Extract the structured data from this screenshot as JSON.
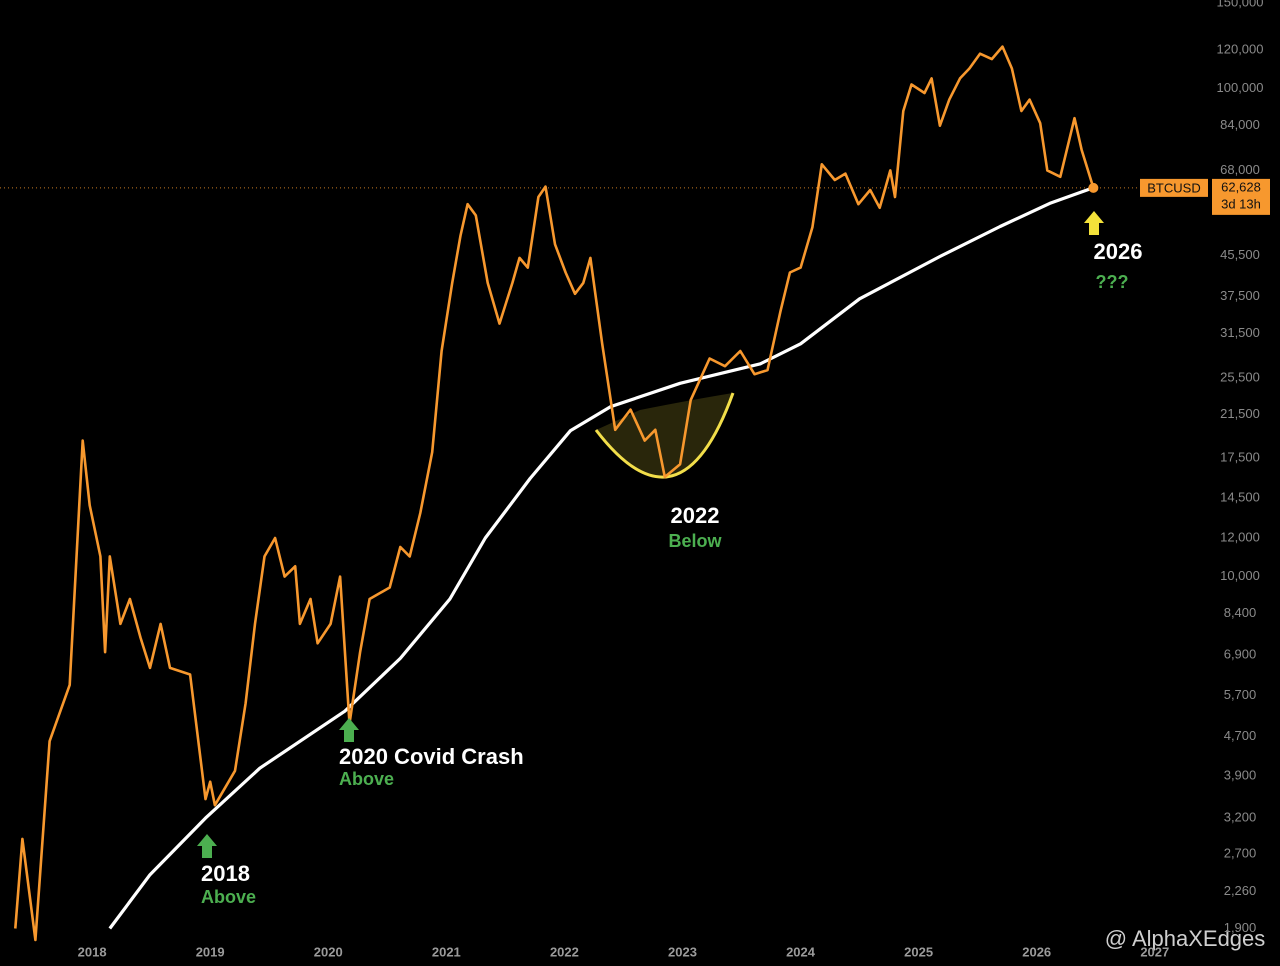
{
  "chart_data": {
    "type": "line",
    "log_scale": true,
    "grid": false,
    "xlim": [
      2017.22,
      2027.51
    ],
    "xticks": [
      2018,
      2019,
      2020,
      2021,
      2022,
      2023,
      2024,
      2025,
      2026,
      2027
    ],
    "ylim": [
      1800,
      152000
    ],
    "yticks": [
      {
        "value": 150000,
        "label": "150,000"
      },
      {
        "value": 120000,
        "label": "120,000"
      },
      {
        "value": 100000,
        "label": "100,000"
      },
      {
        "value": 84000,
        "label": "84,000"
      },
      {
        "value": 68000,
        "label": "68,000"
      },
      {
        "value": 45500,
        "label": "45,500"
      },
      {
        "value": 37500,
        "label": "37,500"
      },
      {
        "value": 31500,
        "label": "31,500"
      },
      {
        "value": 25500,
        "label": "25,500"
      },
      {
        "value": 21500,
        "label": "21,500"
      },
      {
        "value": 17500,
        "label": "17,500"
      },
      {
        "value": 14500,
        "label": "14,500"
      },
      {
        "value": 12000,
        "label": "12,000"
      },
      {
        "value": 10000,
        "label": "10,000"
      },
      {
        "value": 8400,
        "label": "8,400"
      },
      {
        "value": 6900,
        "label": "6,900"
      },
      {
        "value": 5700,
        "label": "5,700"
      },
      {
        "value": 4700,
        "label": "4,700"
      },
      {
        "value": 3900,
        "label": "3,900"
      },
      {
        "value": 3200,
        "label": "3,200"
      },
      {
        "value": 2700,
        "label": "2,700"
      },
      {
        "value": 2260,
        "label": "2,260"
      },
      {
        "value": 1900,
        "label": "1,900"
      }
    ],
    "series": [
      {
        "name": "BTCUSD",
        "color": "#f7982e",
        "x": [
          2017.35,
          2017.41,
          2017.52,
          2017.64,
          2017.81,
          2017.92,
          2017.98,
          2018.07,
          2018.11,
          2018.15,
          2018.24,
          2018.32,
          2018.41,
          2018.49,
          2018.58,
          2018.66,
          2018.83,
          2018.96,
          2019.0,
          2019.04,
          2019.21,
          2019.3,
          2019.38,
          2019.46,
          2019.55,
          2019.63,
          2019.72,
          2019.76,
          2019.85,
          2019.91,
          2020.02,
          2020.1,
          2020.18,
          2020.27,
          2020.35,
          2020.52,
          2020.61,
          2020.69,
          2020.78,
          2020.88,
          2020.96,
          2021.05,
          2021.12,
          2021.18,
          2021.25,
          2021.35,
          2021.45,
          2021.56,
          2021.62,
          2021.69,
          2021.78,
          2021.84,
          2021.92,
          2022.01,
          2022.09,
          2022.16,
          2022.22,
          2022.32,
          2022.43,
          2022.56,
          2022.68,
          2022.77,
          2022.85,
          2022.98,
          2023.07,
          2023.23,
          2023.36,
          2023.49,
          2023.61,
          2023.72,
          2023.83,
          2023.91,
          2024.0,
          2024.1,
          2024.18,
          2024.29,
          2024.38,
          2024.49,
          2024.59,
          2024.67,
          2024.76,
          2024.8,
          2024.87,
          2024.94,
          2025.05,
          2025.11,
          2025.18,
          2025.26,
          2025.35,
          2025.43,
          2025.52,
          2025.62,
          2025.71,
          2025.79,
          2025.87,
          2025.94,
          2026.03,
          2026.09,
          2026.2,
          2026.32,
          2026.38,
          2026.48
        ],
        "values": [
          1900,
          2900,
          1800,
          4600,
          6000,
          19000,
          14000,
          11000,
          7000,
          11000,
          8000,
          9000,
          7500,
          6500,
          8000,
          6500,
          6300,
          3500,
          3800,
          3400,
          4000,
          5500,
          8000,
          11000,
          12000,
          10000,
          10500,
          8000,
          9000,
          7300,
          8000,
          10000,
          5000,
          7000,
          9000,
          9500,
          11500,
          11000,
          13500,
          18000,
          29000,
          40000,
          50000,
          58000,
          55000,
          40000,
          33000,
          40000,
          45000,
          43000,
          60000,
          63000,
          48000,
          42000,
          38000,
          40000,
          45000,
          30000,
          20000,
          22000,
          19000,
          20000,
          16000,
          17000,
          23000,
          28000,
          27000,
          29000,
          26000,
          26500,
          35000,
          42000,
          43000,
          52000,
          70000,
          65000,
          67000,
          58000,
          62000,
          57000,
          68000,
          60000,
          90000,
          102000,
          98000,
          105000,
          84000,
          95000,
          105000,
          110000,
          118000,
          115000,
          122000,
          110000,
          90000,
          95000,
          85000,
          68000,
          66000,
          87000,
          75000,
          62628
        ]
      },
      {
        "color": "#ffffff",
        "x": [
          2018.15,
          2018.49,
          2018.96,
          2019.42,
          2020.14,
          2020.61,
          2021.03,
          2021.33,
          2021.71,
          2022.05,
          2022.39,
          2022.98,
          2023.66,
          2024.0,
          2024.5,
          2025.18,
          2025.69,
          2026.11,
          2026.45
        ],
        "values": [
          1900,
          2450,
          3200,
          4050,
          5300,
          6800,
          9000,
          12000,
          15900,
          19900,
          22300,
          24900,
          27300,
          30000,
          37100,
          45300,
          52200,
          58200,
          62300
        ]
      }
    ],
    "last_price": {
      "symbol": "BTCUSD",
      "value": 62628,
      "label": "62,628",
      "countdown": "3d 13h"
    },
    "annotations": [
      {
        "title": "2018",
        "note": "Above"
      },
      {
        "title": "2020 Covid Crash",
        "note": "Above"
      },
      {
        "title": "2022",
        "note": "Below"
      },
      {
        "title": "2026",
        "note": "???"
      }
    ],
    "watermark": "@ AlphaXEdges"
  }
}
